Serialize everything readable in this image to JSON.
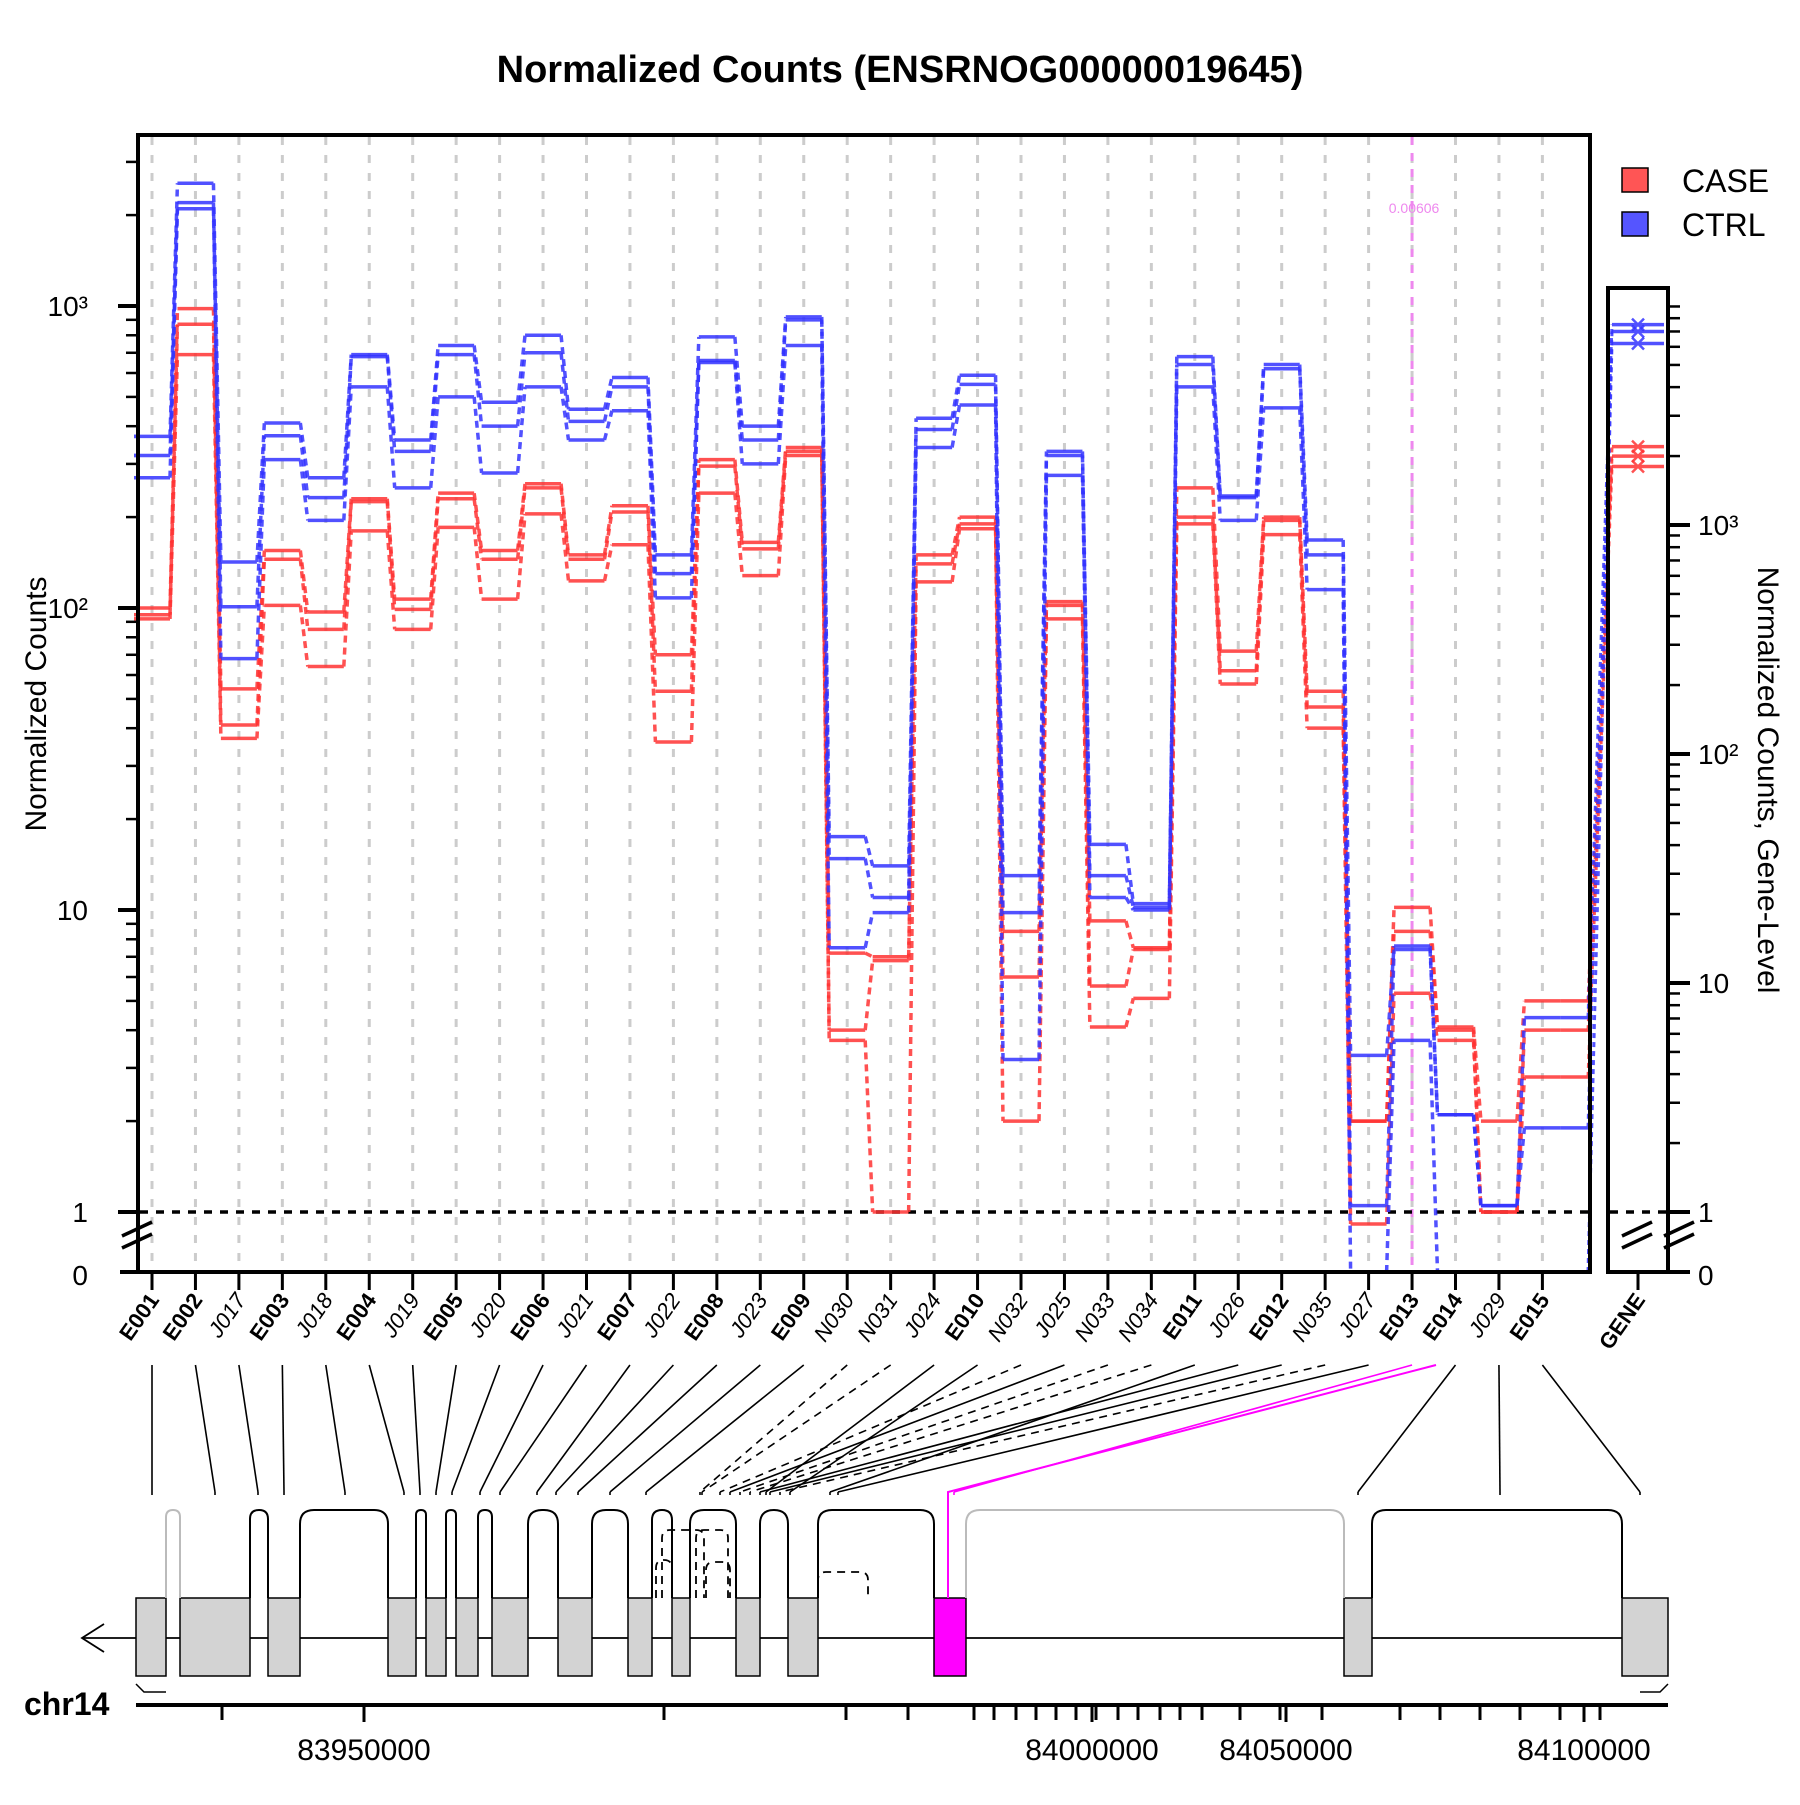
{
  "title": "Normalized Counts (ENSRNOG00000019645)",
  "colors": {
    "case": "#ff3333",
    "ctrl": "#3333ff",
    "highlight": "#ff00ff",
    "highlight_light": "#ee88ee",
    "exon_fill": "#d3d3d3",
    "grid": "#cccccc"
  },
  "legend": [
    {
      "label": "CASE",
      "color": "#ff5555"
    },
    {
      "label": "CTRL",
      "color": "#5555ff"
    }
  ],
  "main_axis": {
    "ylabel": "Normalized Counts",
    "tick_labels": [
      "0",
      "1",
      "10",
      "10²",
      "10³"
    ]
  },
  "gene_axis": {
    "ylabel": "Normalized Counts, Gene-Level",
    "tick_labels": [
      "0",
      "1",
      "10",
      "10²",
      "10³"
    ]
  },
  "pvalue_annotation": {
    "text": "0.00606",
    "feature": "E013"
  },
  "genomic_axis": {
    "chrom": "chr14",
    "tick_labels": [
      "83950000",
      "84000000",
      "84050000",
      "84100000"
    ]
  },
  "chart_data": {
    "type": "line",
    "scale": "log",
    "ylim": [
      0,
      3000
    ],
    "features": [
      {
        "id": "E001",
        "kind": "exon"
      },
      {
        "id": "E002",
        "kind": "exon"
      },
      {
        "id": "J017",
        "kind": "junction"
      },
      {
        "id": "E003",
        "kind": "exon"
      },
      {
        "id": "J018",
        "kind": "junction"
      },
      {
        "id": "E004",
        "kind": "exon"
      },
      {
        "id": "J019",
        "kind": "junction"
      },
      {
        "id": "E005",
        "kind": "exon"
      },
      {
        "id": "J020",
        "kind": "junction"
      },
      {
        "id": "E006",
        "kind": "exon"
      },
      {
        "id": "J021",
        "kind": "junction"
      },
      {
        "id": "E007",
        "kind": "exon"
      },
      {
        "id": "J022",
        "kind": "junction"
      },
      {
        "id": "E008",
        "kind": "exon"
      },
      {
        "id": "J023",
        "kind": "junction"
      },
      {
        "id": "E009",
        "kind": "exon"
      },
      {
        "id": "N030",
        "kind": "novel"
      },
      {
        "id": "N031",
        "kind": "novel"
      },
      {
        "id": "J024",
        "kind": "junction"
      },
      {
        "id": "E010",
        "kind": "exon"
      },
      {
        "id": "N032",
        "kind": "novel"
      },
      {
        "id": "J025",
        "kind": "junction"
      },
      {
        "id": "N033",
        "kind": "novel"
      },
      {
        "id": "N034",
        "kind": "novel"
      },
      {
        "id": "E011",
        "kind": "exon"
      },
      {
        "id": "J026",
        "kind": "junction"
      },
      {
        "id": "E012",
        "kind": "exon"
      },
      {
        "id": "N035",
        "kind": "novel"
      },
      {
        "id": "J027",
        "kind": "junction"
      },
      {
        "id": "E013",
        "kind": "exon"
      },
      {
        "id": "E014",
        "kind": "exon"
      },
      {
        "id": "J029",
        "kind": "junction"
      },
      {
        "id": "E015",
        "kind": "exon"
      }
    ],
    "gene_label": "GENE",
    "series": [
      {
        "name": "CASE",
        "group": "case",
        "values": [
          100,
          980,
          54,
          155,
          97,
          230,
          107,
          240,
          155,
          258,
          150,
          218,
          70,
          310,
          165,
          340,
          7.2,
          7.0,
          150,
          200,
          8.5,
          105,
          9.2,
          7.5,
          250,
          72,
          200,
          53,
          2.0,
          10.2,
          4.1,
          2.0,
          5.0
        ],
        "gene": 2200
      },
      {
        "name": "CASE",
        "group": "case",
        "values": [
          95,
          870,
          41,
          145,
          85,
          225,
          99,
          230,
          145,
          250,
          145,
          208,
          53,
          295,
          157,
          330,
          4.0,
          6.8,
          140,
          190,
          6.0,
          102,
          5.6,
          7.4,
          200,
          62,
          195,
          47,
          2.0,
          8.5,
          4.0,
          1.0,
          4.0
        ],
        "gene": 2000
      },
      {
        "name": "CASE",
        "group": "case",
        "values": [
          92,
          690,
          37,
          102,
          64,
          180,
          85,
          185,
          107,
          205,
          123,
          162,
          36,
          240,
          128,
          320,
          3.7,
          1.0,
          122,
          183,
          2.0,
          92,
          4.1,
          5.1,
          190,
          56,
          175,
          40,
          0.9,
          5.3,
          3.7,
          1.0,
          2.8
        ],
        "gene": 1800
      },
      {
        "name": "CTRL",
        "group": "ctrl",
        "values": [
          370,
          2550,
          142,
          410,
          270,
          690,
          360,
          740,
          480,
          800,
          455,
          580,
          150,
          790,
          400,
          920,
          17.5,
          14.0,
          425,
          590,
          13.0,
          330,
          16.5,
          10.5,
          680,
          235,
          640,
          168,
          3.3,
          7.6,
          2.1,
          1.05,
          4.4
        ],
        "gene": 7500
      },
      {
        "name": "CTRL",
        "group": "ctrl",
        "values": [
          320,
          2200,
          101,
          372,
          232,
          680,
          330,
          690,
          400,
          700,
          415,
          540,
          130,
          660,
          360,
          900,
          14.8,
          11.0,
          390,
          550,
          9.8,
          320,
          13.0,
          10.2,
          640,
          232,
          620,
          150,
          1.05,
          7.4,
          2.1,
          1.05,
          1.9
        ],
        "gene": 7000
      },
      {
        "name": "CTRL",
        "group": "ctrl",
        "values": [
          270,
          2100,
          68,
          310,
          195,
          540,
          250,
          500,
          280,
          540,
          360,
          450,
          108,
          650,
          300,
          740,
          7.5,
          9.8,
          340,
          470,
          3.2,
          275,
          11.0,
          10.0,
          540,
          195,
          460,
          115,
          0.5,
          3.7,
          0.5,
          0.5,
          0.5
        ],
        "gene": 6200
      }
    ]
  }
}
